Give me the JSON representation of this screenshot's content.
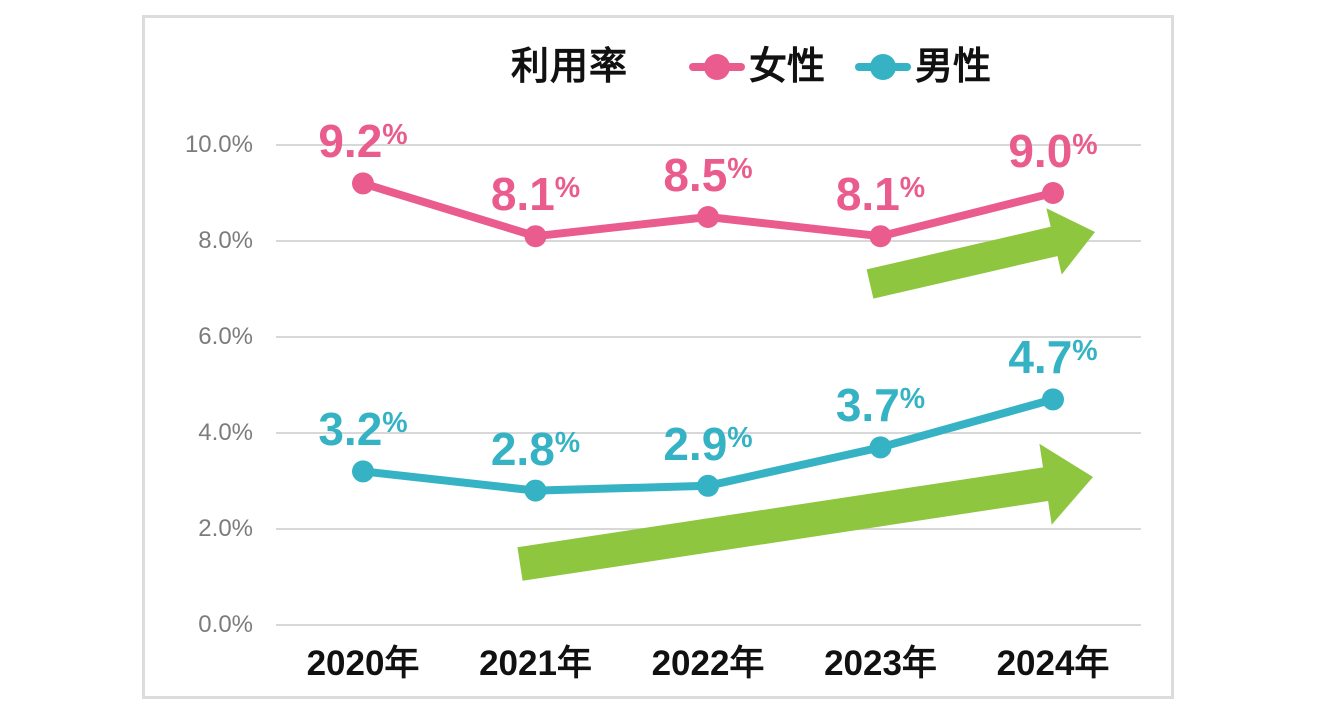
{
  "card": {
    "background": "#ffffff",
    "border_color": "#dcdcdc"
  },
  "chart_data": {
    "type": "line",
    "title": "利用率",
    "categories": [
      "2020年",
      "2021年",
      "2022年",
      "2023年",
      "2024年"
    ],
    "series": [
      {
        "name": "女性",
        "color": "#ea5c8d",
        "values": [
          9.2,
          8.1,
          8.5,
          8.1,
          9.0
        ],
        "data_labels": [
          "9.2%",
          "8.1%",
          "8.5%",
          "8.1%",
          "9.0%"
        ]
      },
      {
        "name": "男性",
        "color": "#35b2c4",
        "values": [
          3.2,
          2.8,
          2.9,
          3.7,
          4.7
        ],
        "data_labels": [
          "3.2%",
          "2.8%",
          "2.9%",
          "3.7%",
          "4.7%"
        ]
      }
    ],
    "xlabel": "",
    "ylabel": "",
    "ylim": [
      0,
      10
    ],
    "y_ticks": [
      0,
      2,
      4,
      6,
      8,
      10
    ],
    "y_tick_labels": [
      "0.0%",
      "2.0%",
      "4.0%",
      "6.0%",
      "8.0%",
      "10.0%"
    ],
    "grid": true,
    "gridline_color": "#d8d8d8",
    "tick_label_color": "#7c7c7c",
    "axis_label_color": "#111111",
    "legend_position": "top",
    "annotations": [
      {
        "type": "trend-arrow",
        "series": "女性",
        "direction": "up-right",
        "color": "#8ec63f"
      },
      {
        "type": "trend-arrow",
        "series": "男性",
        "direction": "up-right",
        "color": "#8ec63f"
      }
    ]
  }
}
